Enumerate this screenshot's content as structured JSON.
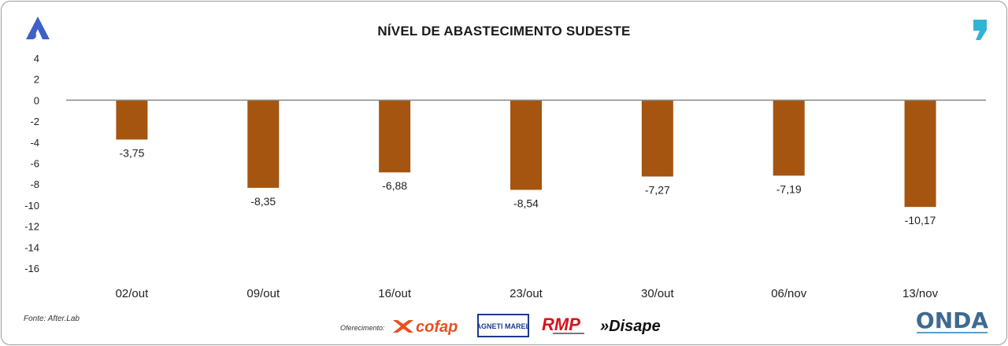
{
  "title": "NÍVEL DE ABASTECIMENTO SUDESTE",
  "source": "Fonte: After.Lab",
  "sponsor_label": "Oferecimento:",
  "sponsors": [
    {
      "name": "cofap",
      "color": "#e8501e"
    },
    {
      "name": "MAGNETI MARELLI",
      "color": "#1a3a8c"
    },
    {
      "name": "RMP",
      "color": "#d4141c"
    },
    {
      "name": "»Disape",
      "color": "#111111"
    }
  ],
  "brand": {
    "name": "ONDA",
    "color": "#3e6b8f",
    "accent": "#5aa0c8"
  },
  "colors": {
    "bar": "#a5550f",
    "axis": "#888888",
    "logo_blue": "#3f5fc9",
    "quote_blue": "#32b4d4"
  },
  "chart_data": {
    "type": "bar",
    "categories": [
      "02/out",
      "09/out",
      "16/out",
      "23/out",
      "30/out",
      "06/nov",
      "13/nov"
    ],
    "values": [
      -3.75,
      -8.35,
      -6.88,
      -8.54,
      -7.27,
      -7.19,
      -10.17
    ],
    "value_labels": [
      "-3,75",
      "-8,35",
      "-6,88",
      "-8,54",
      "-7,27",
      "-7,19",
      "-10,17"
    ],
    "ylim": [
      -16,
      4
    ],
    "yticks": [
      4,
      2,
      0,
      -2,
      -4,
      -6,
      -8,
      -10,
      -12,
      -14,
      -16
    ],
    "title": "NÍVEL DE ABASTECIMENTO SUDESTE",
    "xlabel": "",
    "ylabel": "",
    "grid": false
  }
}
